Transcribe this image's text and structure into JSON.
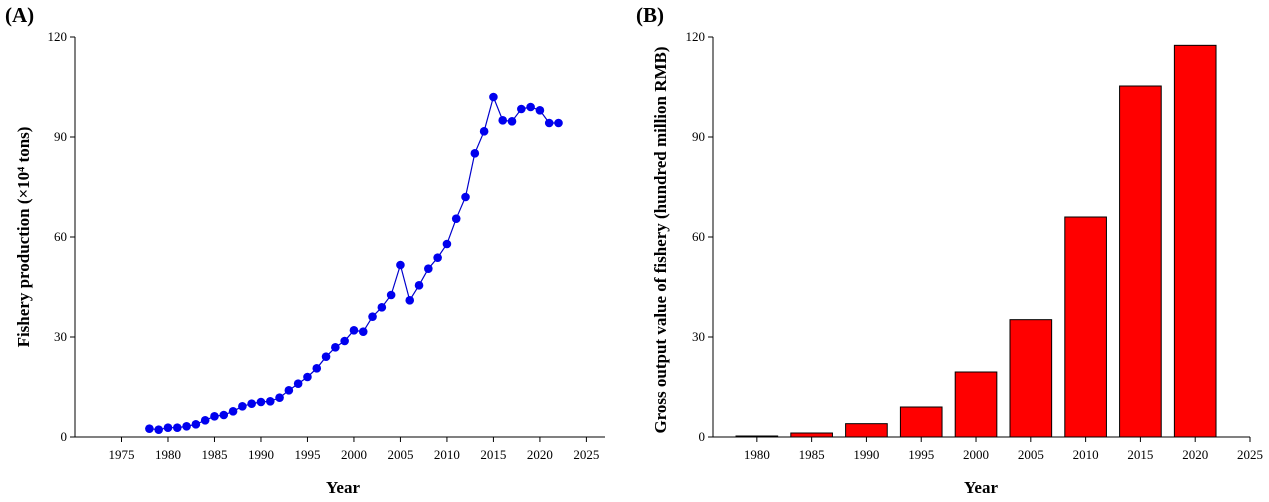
{
  "chart_data": [
    {
      "type": "line",
      "panel_label": "(A)",
      "xlabel": "Year",
      "ylabel": "Fishery production (×10⁴ tons)",
      "xlim": [
        1970,
        2027
      ],
      "ylim": [
        0,
        120
      ],
      "x_ticks": [
        1975,
        1980,
        1985,
        1990,
        1995,
        2000,
        2005,
        2010,
        2015,
        2020,
        2025
      ],
      "y_ticks": [
        0,
        30,
        60,
        90,
        120
      ],
      "marker_color": "#0000ee",
      "line_color": "#0000cc",
      "series": [
        {
          "x": [
            1978,
            1979,
            1980,
            1981,
            1982,
            1983,
            1984,
            1985,
            1986,
            1987,
            1988,
            1989,
            1990,
            1991,
            1992,
            1993,
            1994,
            1995,
            1996,
            1997,
            1998,
            1999,
            2000,
            2001,
            2002,
            2003,
            2004,
            2005,
            2006,
            2007,
            2008,
            2009,
            2010,
            2011,
            2012,
            2013,
            2014,
            2015,
            2016,
            2017,
            2018,
            2019,
            2020,
            2021,
            2022
          ],
          "y": [
            2.5,
            2.2,
            2.8,
            2.8,
            3.2,
            3.8,
            5.0,
            6.2,
            6.6,
            7.7,
            9.2,
            10.0,
            10.5,
            10.7,
            11.8,
            14.0,
            16.0,
            18.0,
            20.6,
            24.1,
            26.9,
            28.8,
            32.0,
            31.6,
            36.1,
            38.9,
            42.6,
            51.6,
            41.0,
            45.5,
            50.5,
            53.8,
            57.9,
            65.5,
            72.0,
            85.1,
            91.7,
            102.0,
            95.0,
            94.7,
            98.4,
            99.0,
            98.0,
            94.2,
            94.2
          ]
        }
      ]
    },
    {
      "type": "bar",
      "panel_label": "(B)",
      "xlabel": "Year",
      "ylabel": "Gross output value of fishery (hundred million RMB)",
      "xlim": [
        1976,
        2025
      ],
      "ylim": [
        0,
        120
      ],
      "x_ticks": [
        1980,
        1985,
        1990,
        1995,
        2000,
        2005,
        2010,
        2015,
        2020,
        2025
      ],
      "y_ticks": [
        0,
        30,
        60,
        90,
        120
      ],
      "bar_color": "#ff0000",
      "categories": [
        "1980",
        "1985",
        "1990",
        "1995",
        "2000",
        "2005",
        "2010",
        "2015",
        "2020"
      ],
      "x": [
        1980,
        1985,
        1990,
        1995,
        2000,
        2005,
        2010,
        2015,
        2020
      ],
      "values": [
        0.3,
        1.2,
        4.0,
        9.0,
        19.5,
        35.2,
        66.0,
        105.3,
        117.5
      ]
    }
  ]
}
